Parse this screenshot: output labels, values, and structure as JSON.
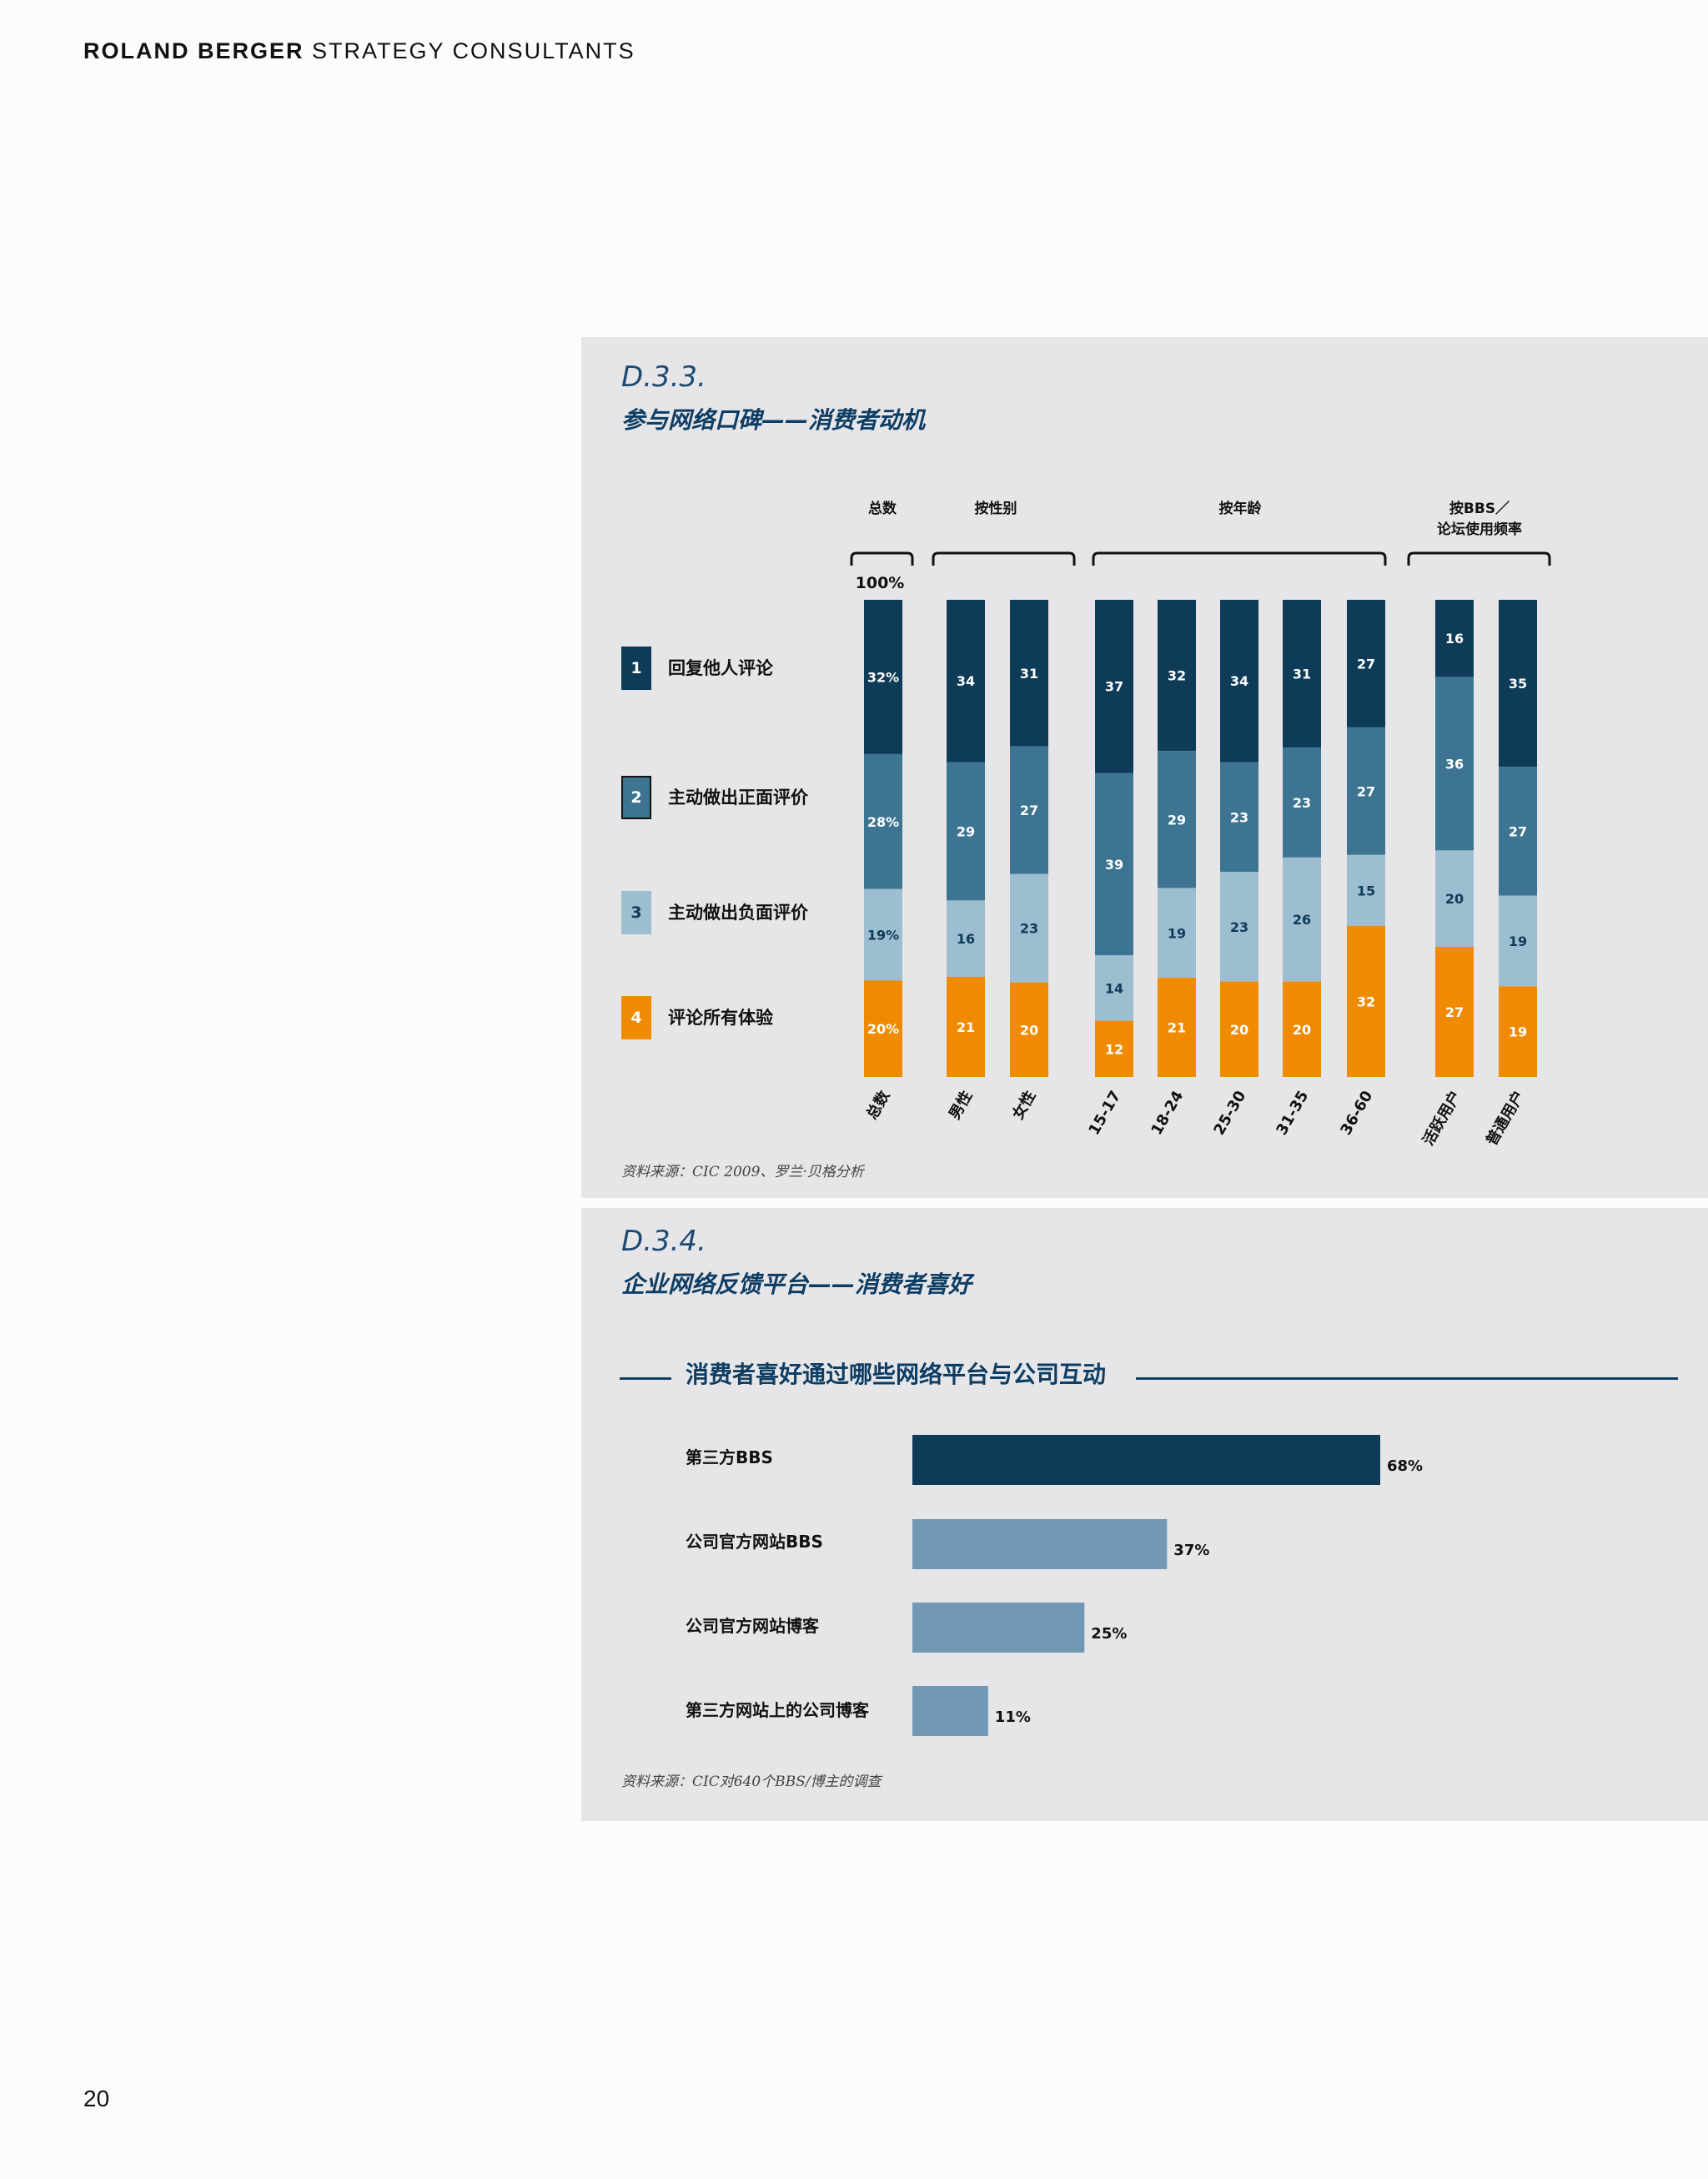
{
  "header": {
    "brand": "ROLAND BERGER",
    "rest": "STRATEGY CONSULTANTS"
  },
  "page_number": "20",
  "colors": {
    "seg1": "#0d3b58",
    "seg2": "#3c7492",
    "seg3": "#9dbdd0",
    "seg4": "#f08a00",
    "bar_primary": "#0d3b58",
    "bar_secondary": "#7199b5",
    "panel_bg": "#e6e6e8",
    "title": "#0e3d63"
  },
  "fig1": {
    "id": "D.3.3.",
    "title": "参与网络口碑——消费者动机",
    "source": "资料来源：CIC 2009、罗兰·贝格分析",
    "legend": [
      {
        "num": "1",
        "label": "回复他人评论"
      },
      {
        "num": "2",
        "label": "主动做出正面评价"
      },
      {
        "num": "3",
        "label": "主动做出负面评价"
      },
      {
        "num": "4",
        "label": "评论所有体验"
      }
    ]
  },
  "fig2": {
    "id": "D.3.4.",
    "title": "企业网络反馈平台——消费者喜好",
    "source": "资料来源：CIC对640个BBS/博主的调查"
  },
  "chart_data": [
    {
      "type": "bar",
      "stacked": true,
      "group_headers": [
        "总数",
        "按性别",
        "按年龄",
        "按BBS／",
        "论坛使用频率"
      ],
      "top_label": "100%",
      "categories": [
        "总数",
        "男性",
        "女性",
        "15-17",
        "18-24",
        "25-30",
        "31-35",
        "36-60",
        "活跃用户",
        "普通用户"
      ],
      "series": [
        {
          "name": "回复他人评论",
          "values": [
            32,
            34,
            31,
            37,
            32,
            34,
            31,
            27,
            16,
            35
          ]
        },
        {
          "name": "主动做出正面评价",
          "values": [
            28,
            29,
            27,
            39,
            29,
            23,
            23,
            27,
            36,
            27
          ]
        },
        {
          "name": "主动做出负面评价",
          "values": [
            19,
            16,
            23,
            14,
            19,
            23,
            26,
            15,
            20,
            19
          ]
        },
        {
          "name": "评论所有体验",
          "values": [
            20,
            21,
            20,
            12,
            21,
            20,
            20,
            32,
            27,
            19
          ]
        }
      ],
      "value_labels": [
        [
          "32%",
          "34",
          "31",
          "37",
          "32",
          "34",
          "31",
          "27",
          "16",
          "35"
        ],
        [
          "28%",
          "29",
          "27",
          "39",
          "29",
          "23",
          "23",
          "27",
          "36",
          "27"
        ],
        [
          "19%",
          "16",
          "23",
          "14",
          "19",
          "23",
          "26",
          "15",
          "20",
          "19"
        ],
        [
          "20%",
          "21",
          "20",
          "12",
          "21",
          "20",
          "20",
          "32",
          "27",
          "19"
        ]
      ],
      "ylim": [
        0,
        100
      ]
    },
    {
      "type": "bar",
      "orientation": "horizontal",
      "title": "消费者喜好通过哪些网络平台与公司互动",
      "categories": [
        "第三方BBS",
        "公司官方网站BBS",
        "公司官方网站博客",
        "第三方网站上的公司博客"
      ],
      "values": [
        68,
        37,
        25,
        11
      ],
      "value_labels": [
        "68%",
        "37%",
        "25%",
        "11%"
      ],
      "xlim": [
        0,
        100
      ]
    }
  ]
}
